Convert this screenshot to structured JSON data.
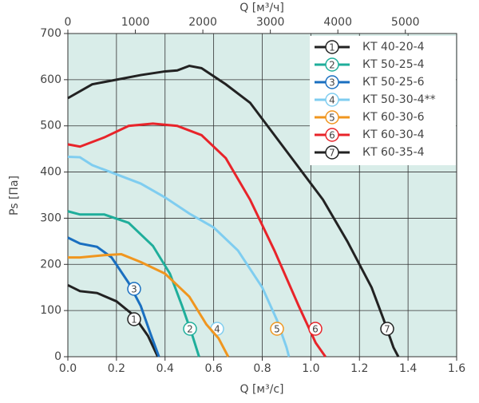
{
  "chart_data": {
    "type": "line",
    "x_label": "Q [м³/с]",
    "x2_label": "Q [м³/ч]",
    "y_label": "Ps [Па]",
    "xlim": [
      0,
      1.6
    ],
    "xticks": [
      {
        "value": 0,
        "label": "0.0"
      },
      0.2,
      0.4,
      0.6,
      0.8,
      {
        "value": 1,
        "label": "1.0"
      },
      1.2,
      1.4,
      1.6
    ],
    "x2lim": [
      0,
      5760
    ],
    "x2ticks": [
      0,
      1000,
      2000,
      3000,
      4000,
      5000
    ],
    "ylim": [
      0,
      700
    ],
    "yticks": [
      0,
      100,
      200,
      300,
      400,
      500,
      600,
      700
    ],
    "grid": true,
    "legend": "top-right",
    "series": [
      {
        "name": "КТ 40-20-4",
        "marker": "1",
        "color": "#222222",
        "x": [
          0,
          0.05,
          0.12,
          0.2,
          0.27,
          0.33,
          0.37
        ],
        "values": [
          155,
          142,
          138,
          120,
          90,
          45,
          0
        ]
      },
      {
        "name": "КТ 50-25-4",
        "marker": "2",
        "color": "#1fae9b",
        "x": [
          0,
          0.05,
          0.15,
          0.25,
          0.35,
          0.42,
          0.47,
          0.51,
          0.54
        ],
        "values": [
          315,
          308,
          308,
          290,
          240,
          180,
          110,
          50,
          0
        ]
      },
      {
        "name": "КТ 50-25-6",
        "marker": "3",
        "color": "#1a6fc0",
        "x": [
          0,
          0.05,
          0.12,
          0.18,
          0.25,
          0.3,
          0.34,
          0.375
        ],
        "values": [
          258,
          245,
          238,
          215,
          160,
          110,
          50,
          0
        ]
      },
      {
        "name": "КТ 50-30-4**",
        "marker": "4",
        "color": "#7fcdf0",
        "x": [
          0,
          0.05,
          0.1,
          0.2,
          0.3,
          0.4,
          0.5,
          0.6,
          0.7,
          0.8,
          0.86,
          0.9,
          0.91
        ],
        "values": [
          433,
          432,
          415,
          395,
          375,
          345,
          310,
          280,
          230,
          150,
          80,
          20,
          0
        ]
      },
      {
        "name": "КТ 60-30-6",
        "marker": "5",
        "color": "#f0961f",
        "x": [
          0,
          0.05,
          0.15,
          0.22,
          0.3,
          0.4,
          0.5,
          0.57,
          0.62,
          0.66
        ],
        "values": [
          215,
          215,
          220,
          222,
          205,
          180,
          130,
          70,
          40,
          0
        ]
      },
      {
        "name": "КТ 60-30-4",
        "marker": "6",
        "color": "#e8242a",
        "x": [
          0,
          0.05,
          0.15,
          0.25,
          0.35,
          0.45,
          0.55,
          0.65,
          0.75,
          0.85,
          0.95,
          1.02,
          1.06
        ],
        "values": [
          460,
          455,
          475,
          500,
          505,
          500,
          480,
          430,
          340,
          230,
          110,
          30,
          0
        ]
      },
      {
        "name": "КТ 60-35-4",
        "marker": "7",
        "color": "#222222",
        "x": [
          0,
          0.1,
          0.2,
          0.3,
          0.4,
          0.45,
          0.5,
          0.55,
          0.65,
          0.75,
          0.85,
          0.95,
          1.05,
          1.15,
          1.25,
          1.3,
          1.34,
          1.36
        ],
        "values": [
          560,
          590,
          600,
          610,
          618,
          620,
          630,
          625,
          590,
          550,
          480,
          410,
          340,
          250,
          150,
          80,
          20,
          0
        ]
      }
    ]
  }
}
